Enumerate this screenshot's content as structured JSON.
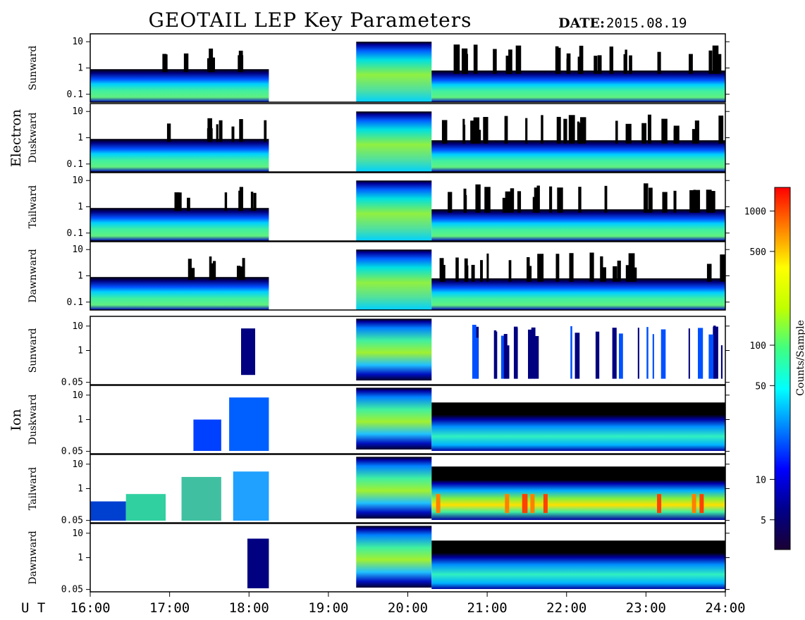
{
  "title": "GEOTAIL LEP Key Parameters",
  "date_label": "DATE:",
  "date_value": "2015.08.19",
  "ut_label": "U T",
  "colorbar": {
    "label": "Counts/Sample",
    "scale": "log",
    "ticks": [
      "5",
      "10",
      "50",
      "100",
      "500",
      "1000"
    ],
    "tick_values": [
      5,
      10,
      50,
      100,
      500,
      1000
    ],
    "range": [
      3,
      1500
    ],
    "colors": [
      "#1a0033",
      "#00008b",
      "#0000ff",
      "#0080ff",
      "#00ffff",
      "#40ff80",
      "#c0ff00",
      "#ffff00",
      "#ff8000",
      "#ff0000"
    ]
  },
  "chart_data": {
    "type": "heatmap",
    "x_axis": {
      "ticks": [
        "16:00",
        "17:00",
        "18:00",
        "19:00",
        "20:00",
        "21:00",
        "22:00",
        "23:00",
        "24:00"
      ],
      "range_hours": [
        16,
        24
      ]
    },
    "data_gap_hours": [
      18.25,
      19.35
    ],
    "groups": [
      {
        "name": "Electron",
        "panels": [
          {
            "label": "Sunward",
            "ylim": [
              0.05,
              20
            ],
            "yscale": "log",
            "yticks": [
              "10",
              "1",
              "0.1"
            ],
            "ytick_values": [
              10,
              1,
              0.1
            ]
          },
          {
            "label": "Duskward",
            "ylim": [
              0.05,
              20
            ],
            "yscale": "log",
            "yticks": [
              "10",
              "1",
              "0.1"
            ],
            "ytick_values": [
              10,
              1,
              0.1
            ]
          },
          {
            "label": "Tailward",
            "ylim": [
              0.05,
              20
            ],
            "yscale": "log",
            "yticks": [
              "10",
              "1",
              "0.1"
            ],
            "ytick_values": [
              10,
              1,
              0.1
            ]
          },
          {
            "label": "Dawnward",
            "ylim": [
              0.05,
              20
            ],
            "yscale": "log",
            "yticks": [
              "10",
              "1",
              "0.1"
            ],
            "ytick_values": [
              10,
              1,
              0.1
            ]
          }
        ]
      },
      {
        "name": "Ion",
        "panels": [
          {
            "label": "Sunward",
            "ylim": [
              0.04,
              25
            ],
            "yscale": "log",
            "yticks": [
              "10",
              "1",
              "0.05"
            ],
            "ytick_values": [
              10,
              1,
              0.05
            ]
          },
          {
            "label": "Duskward",
            "ylim": [
              0.04,
              25
            ],
            "yscale": "log",
            "yticks": [
              "10",
              "1",
              "0.05"
            ],
            "ytick_values": [
              10,
              1,
              0.05
            ]
          },
          {
            "label": "Tailward",
            "ylim": [
              0.04,
              25
            ],
            "yscale": "log",
            "yticks": [
              "10",
              "1",
              "0.05"
            ],
            "ytick_values": [
              10,
              1,
              0.05
            ]
          },
          {
            "label": "Dawnward",
            "ylim": [
              0.04,
              25
            ],
            "yscale": "log",
            "yticks": [
              "10",
              "1",
              "0.05"
            ],
            "ytick_values": [
              10,
              1,
              0.05
            ]
          }
        ]
      }
    ]
  }
}
